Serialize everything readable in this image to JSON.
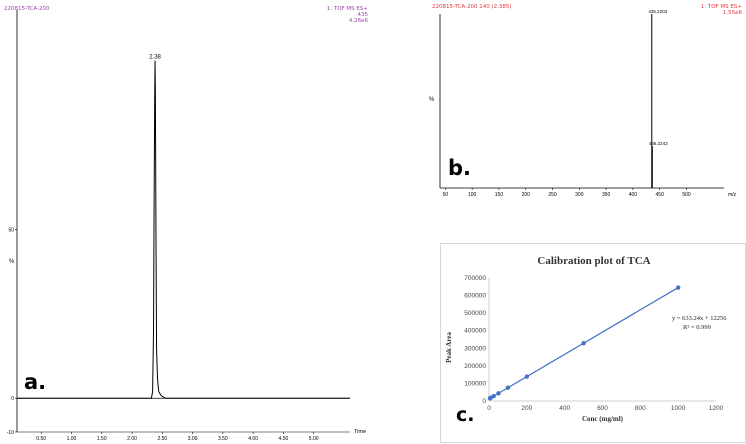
{
  "chart_data": [
    {
      "type": "line",
      "panel_label": "a.",
      "header_left": "220815-TCA-200",
      "header_right": [
        "1: TOF MS ES+",
        "435",
        "4.26e6"
      ],
      "peak_label": "2.38",
      "xlabel": "Time",
      "ylabel": "%",
      "x_ticks": [
        "0.50",
        "1.00",
        "1.50",
        "2.00",
        "2.50",
        "3.00",
        "3.50",
        "4.00",
        "4.50",
        "5.00"
      ],
      "y_ticks": [
        "50",
        "0",
        "-10"
      ],
      "xlim": [
        0.1,
        5.6
      ],
      "ylim": [
        -10,
        115
      ],
      "series": [
        {
          "x": [
            0.1,
            2.32,
            2.34,
            2.355,
            2.365,
            2.375,
            2.38,
            2.385,
            2.395,
            2.405,
            2.42,
            2.44,
            2.48,
            2.55,
            5.6
          ],
          "y": [
            0,
            0,
            2,
            20,
            60,
            90,
            100,
            92,
            50,
            15,
            6,
            2,
            0.8,
            0,
            0
          ]
        }
      ],
      "colors": {
        "header": "#a040b0",
        "line": "#000000"
      }
    },
    {
      "type": "bar",
      "panel_label": "b.",
      "header_left": "220815-TCA-200 140 (2.385)",
      "header_right": [
        "1: TOF MS ES+",
        "1.55e6"
      ],
      "ylabel": "%",
      "x_ticks": [
        "50",
        "100",
        "150",
        "200",
        "250",
        "300",
        "350",
        "400",
        "450",
        "500",
        "m/z"
      ],
      "xlim": [
        40,
        570
      ],
      "ylim": [
        0,
        100
      ],
      "peaks": [
        {
          "mz": 435.2203,
          "intensity": 100,
          "label": "435.2203"
        },
        {
          "mz": 436.2242,
          "intensity": 24,
          "label": "436.2242"
        }
      ],
      "colors": {
        "header": "#e8383c",
        "line": "#000000"
      }
    },
    {
      "type": "scatter",
      "panel_label": "c.",
      "title": "Calibration plot of TCA",
      "xlabel": "Conc (mg/ml)",
      "ylabel": "Peak Area",
      "x_ticks": [
        "0",
        "200",
        "400",
        "600",
        "800",
        "1000",
        "1200"
      ],
      "y_ticks": [
        "0",
        "100000",
        "200000",
        "300000",
        "400000",
        "500000",
        "600000",
        "700000"
      ],
      "xlim": [
        0,
        1200
      ],
      "ylim": [
        0,
        700000
      ],
      "x": [
        5,
        10,
        25,
        50,
        100,
        200,
        500,
        1000
      ],
      "y": [
        15400,
        18600,
        28100,
        43600,
        75600,
        139000,
        328900,
        645500
      ],
      "trendline": {
        "slope": 633.24,
        "intercept": 12256
      },
      "equation": "y = 633.24x + 12256",
      "r2": "R² = 0.999",
      "colors": {
        "marker": "#4472c4",
        "line": "#4472c4"
      }
    }
  ]
}
